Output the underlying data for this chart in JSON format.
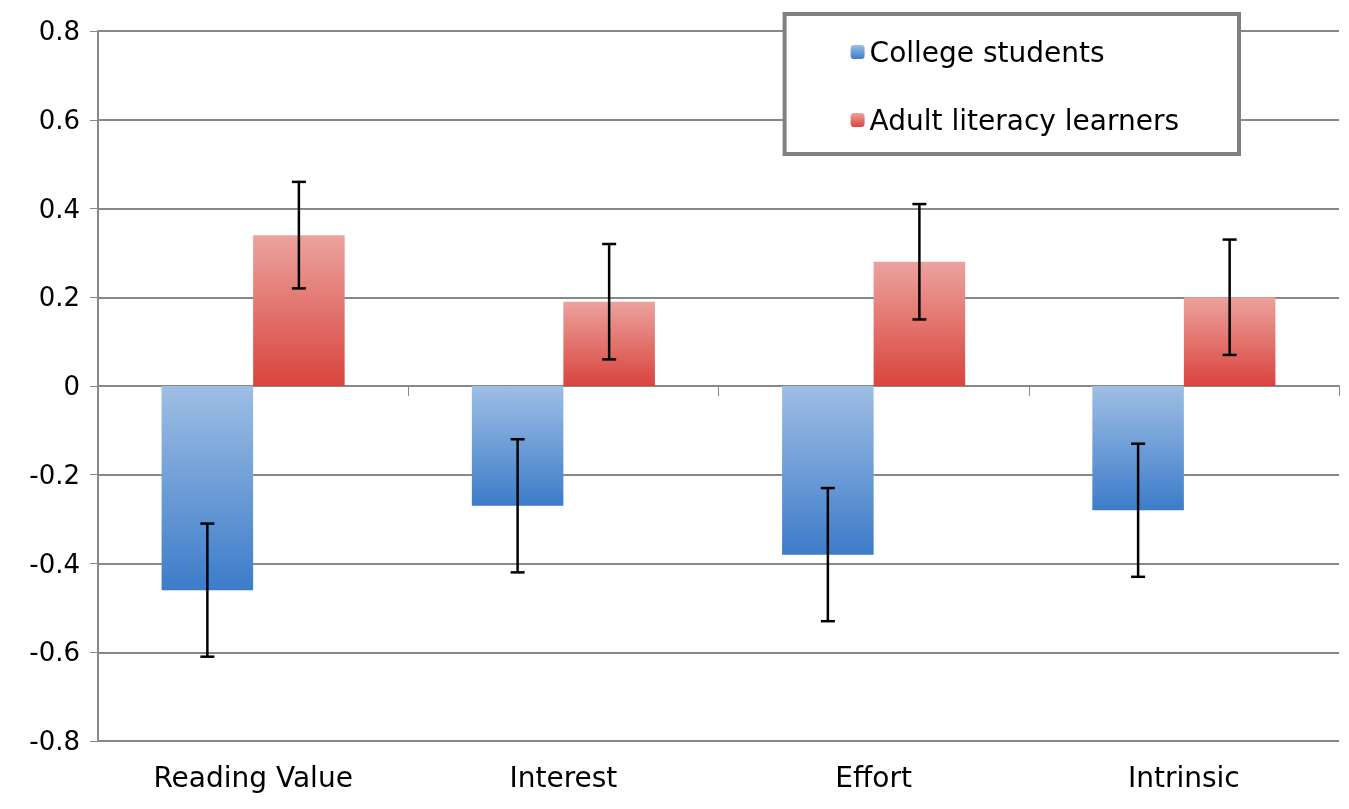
{
  "chart_data": {
    "type": "bar",
    "categories": [
      "Reading Value",
      "Interest",
      "Effort",
      "Intrinsic"
    ],
    "series": [
      {
        "name": "College students",
        "color": "#3d7cc9",
        "values": [
          -0.46,
          -0.27,
          -0.38,
          -0.28
        ],
        "errors": [
          0.15,
          0.15,
          0.15,
          0.15
        ]
      },
      {
        "name": "Adult literacy learners",
        "color": "#d9443d",
        "values": [
          0.34,
          0.19,
          0.28,
          0.2
        ],
        "errors": [
          0.12,
          0.13,
          0.13,
          0.13
        ]
      }
    ],
    "ylim": [
      -0.8,
      0.8
    ],
    "yticks": [
      -0.8,
      -0.6,
      -0.4,
      -0.2,
      0,
      0.2,
      0.4,
      0.6,
      0.8
    ],
    "grid": "y",
    "legend": "top right"
  }
}
